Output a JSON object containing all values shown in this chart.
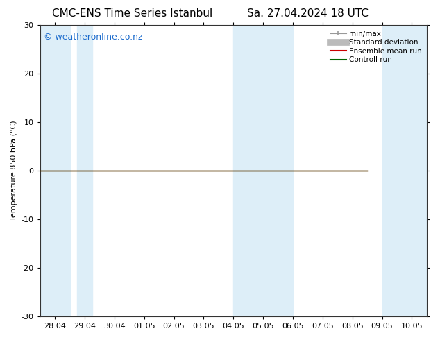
{
  "title_left": "CMC-ENS Time Series Istanbul",
  "title_right": "Sa. 27.04.2024 18 UTC",
  "ylabel": "Temperature 850 hPa (°C)",
  "watermark": "© weatheronline.co.nz",
  "ylim": [
    -30,
    30
  ],
  "yticks": [
    -30,
    -20,
    -10,
    0,
    10,
    20,
    30
  ],
  "xtick_labels": [
    "28.04",
    "29.04",
    "30.04",
    "01.05",
    "02.05",
    "03.05",
    "04.05",
    "05.05",
    "06.05",
    "07.05",
    "08.05",
    "09.05",
    "10.05"
  ],
  "n_xticks": 13,
  "flat_line_value": 0.0,
  "line_color_control": "#006600",
  "line_color_ensemble": "#cc0000",
  "band_color": "#ddeef8",
  "bg_color": "#ffffff",
  "title_fontsize": 11,
  "axis_fontsize": 8,
  "watermark_color": "#1a6acc",
  "watermark_fontsize": 9,
  "legend_items": [
    {
      "label": "min/max",
      "color": "#aaaaaa",
      "lw": 1.0
    },
    {
      "label": "Standard deviation",
      "color": "#aaaaaa",
      "lw": 5
    },
    {
      "label": "Ensemble mean run",
      "color": "#cc0000",
      "lw": 1.5
    },
    {
      "label": "Controll run",
      "color": "#006600",
      "lw": 1.5
    }
  ]
}
